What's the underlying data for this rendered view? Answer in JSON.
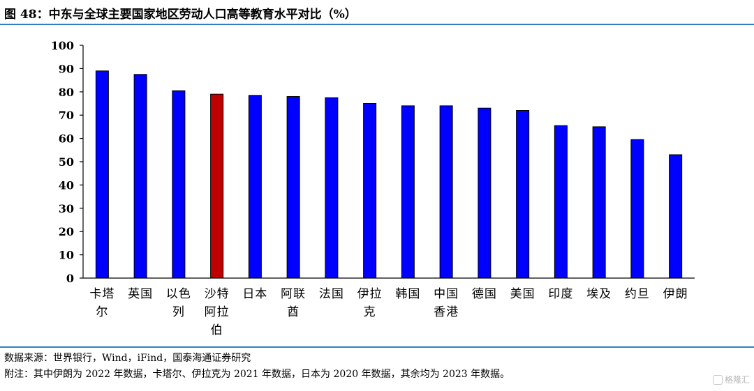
{
  "header": {
    "figure_title": "图 48：中东与全球主要国家地区劳动人口高等教育水平对比（%）"
  },
  "chart_data": {
    "type": "bar",
    "categories": [
      "卡塔尔",
      "英国",
      "以色列",
      "沙特阿拉伯",
      "日本",
      "阿联酋",
      "法国",
      "伊拉克",
      "韩国",
      "中国香港",
      "德国",
      "美国",
      "印度",
      "埃及",
      "约旦",
      "伊朗"
    ],
    "category_lines": [
      [
        "卡塔",
        "尔"
      ],
      [
        "英国"
      ],
      [
        "以色",
        "列"
      ],
      [
        "沙特",
        "阿拉",
        "伯"
      ],
      [
        "日本"
      ],
      [
        "阿联",
        "酋"
      ],
      [
        "法国"
      ],
      [
        "伊拉",
        "克"
      ],
      [
        "韩国"
      ],
      [
        "中国",
        "香港"
      ],
      [
        "德国"
      ],
      [
        "美国"
      ],
      [
        "印度"
      ],
      [
        "埃及"
      ],
      [
        "约旦"
      ],
      [
        "伊朗"
      ]
    ],
    "values": [
      89,
      87.5,
      80.5,
      79,
      78.5,
      78,
      77.5,
      75,
      74,
      74,
      73,
      72,
      65.5,
      65,
      59.5,
      53
    ],
    "bar_colors": [
      "#0000ff",
      "#0000ff",
      "#0000ff",
      "#c00000",
      "#0000ff",
      "#0000ff",
      "#0000ff",
      "#0000ff",
      "#0000ff",
      "#0000ff",
      "#0000ff",
      "#0000ff",
      "#0000ff",
      "#0000ff",
      "#0000ff",
      "#0000ff"
    ],
    "yticks": [
      "0",
      "10",
      "20",
      "30",
      "40",
      "50",
      "60",
      "70",
      "80",
      "90",
      "100"
    ],
    "ylim": [
      0,
      100
    ],
    "grid": false,
    "legend": "none"
  },
  "footer": {
    "source": "数据来源：世界银行，Wind，iFind，国泰海通证券研究",
    "note": "附注：其中伊朗为 2022 年数据，卡塔尔、伊拉克为 2021 年数据，日本为 2020 年数据，其余均为 2023 年数据。",
    "watermark": "格隆汇"
  }
}
